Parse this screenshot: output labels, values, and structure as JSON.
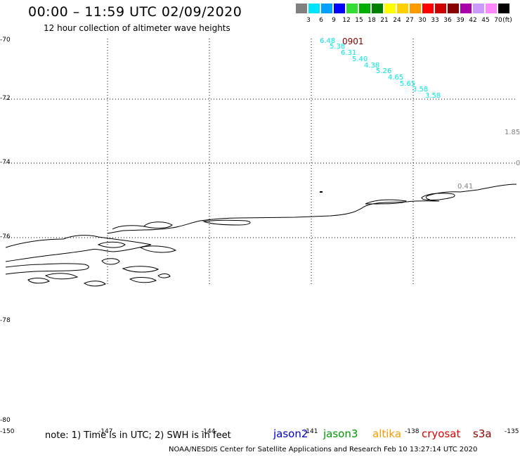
{
  "title": "00:00 – 11:59 UTC 02/09/2020",
  "subtitle": "12 hour collection of altimeter wave heights",
  "legend": {
    "unit": "(ft)",
    "items": [
      {
        "label": "3",
        "color": "#808080"
      },
      {
        "label": "6",
        "color": "#00e5ff"
      },
      {
        "label": "9",
        "color": "#00a0ff"
      },
      {
        "label": "12",
        "color": "#0000ff"
      },
      {
        "label": "15",
        "color": "#33dd33"
      },
      {
        "label": "18",
        "color": "#00b000"
      },
      {
        "label": "21",
        "color": "#008000"
      },
      {
        "label": "24",
        "color": "#ffff00"
      },
      {
        "label": "27",
        "color": "#ffd000"
      },
      {
        "label": "30",
        "color": "#ff9900"
      },
      {
        "label": "33",
        "color": "#ff0000"
      },
      {
        "label": "36",
        "color": "#cc0000"
      },
      {
        "label": "39",
        "color": "#880000"
      },
      {
        "label": "42",
        "color": "#aa00aa"
      },
      {
        "label": "45",
        "color": "#cc99ff"
      },
      {
        "label": "70",
        "color": "#ff88ff"
      },
      {
        "label": "",
        "color": "#000000"
      }
    ]
  },
  "axis": {
    "lat_labels": [
      "-70",
      "-72",
      "-74",
      "-76",
      "-78",
      "-78",
      "-80"
    ],
    "lon_labels": [
      "-150",
      "-147",
      "-144",
      "-141",
      "-138",
      "-135"
    ]
  },
  "track": {
    "time_label": "0901",
    "time_color": "#880000",
    "values": [
      "6.48",
      "5.38",
      "6.31",
      "5.40",
      "4.38",
      "5.26",
      "4.65",
      "5.65",
      "3.58",
      "3.58"
    ]
  },
  "other_values": {
    "v1": "1.85",
    "v2": "0.41",
    "v3": "0"
  },
  "note": "note: 1) Time is in UTC; 2) SWH is in feet",
  "satellites": [
    {
      "name": "jason2",
      "color": "#0000cc"
    },
    {
      "name": "jason3",
      "color": "#009900"
    },
    {
      "name": "altika",
      "color": "#ff9900"
    },
    {
      "name": "cryosat",
      "color": "#dd0000"
    },
    {
      "name": "s3a",
      "color": "#880000"
    }
  ],
  "credit": "NOAA/NESDIS Center for Satellite Applications and Research    Feb 10 13:27:14 UTC 2020"
}
